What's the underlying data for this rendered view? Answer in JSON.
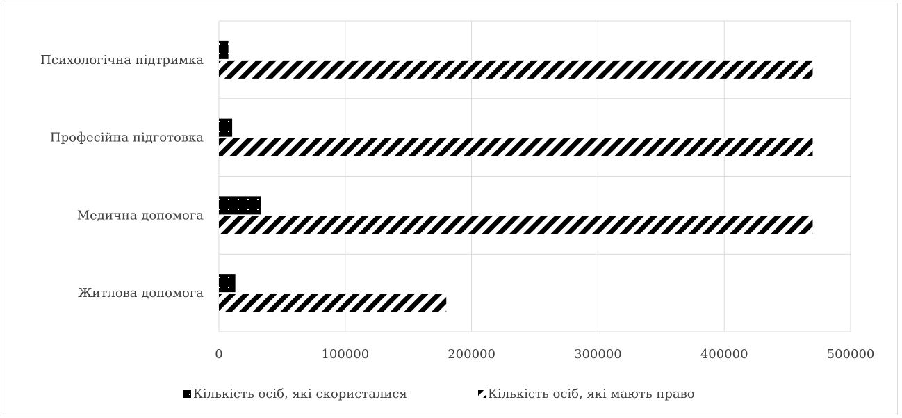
{
  "chart_data": {
    "type": "bar",
    "orientation": "horizontal",
    "categories": [
      "Житлова допомога",
      "Медична допомога",
      "Професійна підготовка",
      "Психологічна підтримка"
    ],
    "series": [
      {
        "name": "Кількість осіб, які скористалися",
        "values": [
          13000,
          33000,
          10500,
          7500
        ],
        "pattern": "dotted-black"
      },
      {
        "name": "Кількість осіб, які мають право",
        "values": [
          180000,
          470000,
          470000,
          470000
        ],
        "pattern": "diagonal-stripes"
      }
    ],
    "xlim": [
      0,
      500000
    ],
    "xticks": [
      "0",
      "100000",
      "200000",
      "300000",
      "400000",
      "500000"
    ],
    "xlabel": "",
    "ylabel": "",
    "title": "",
    "grid": true,
    "legend_position": "bottom",
    "colors": {
      "grid": "#d9d9d9",
      "text": "#404040",
      "bar": "#000000"
    }
  }
}
